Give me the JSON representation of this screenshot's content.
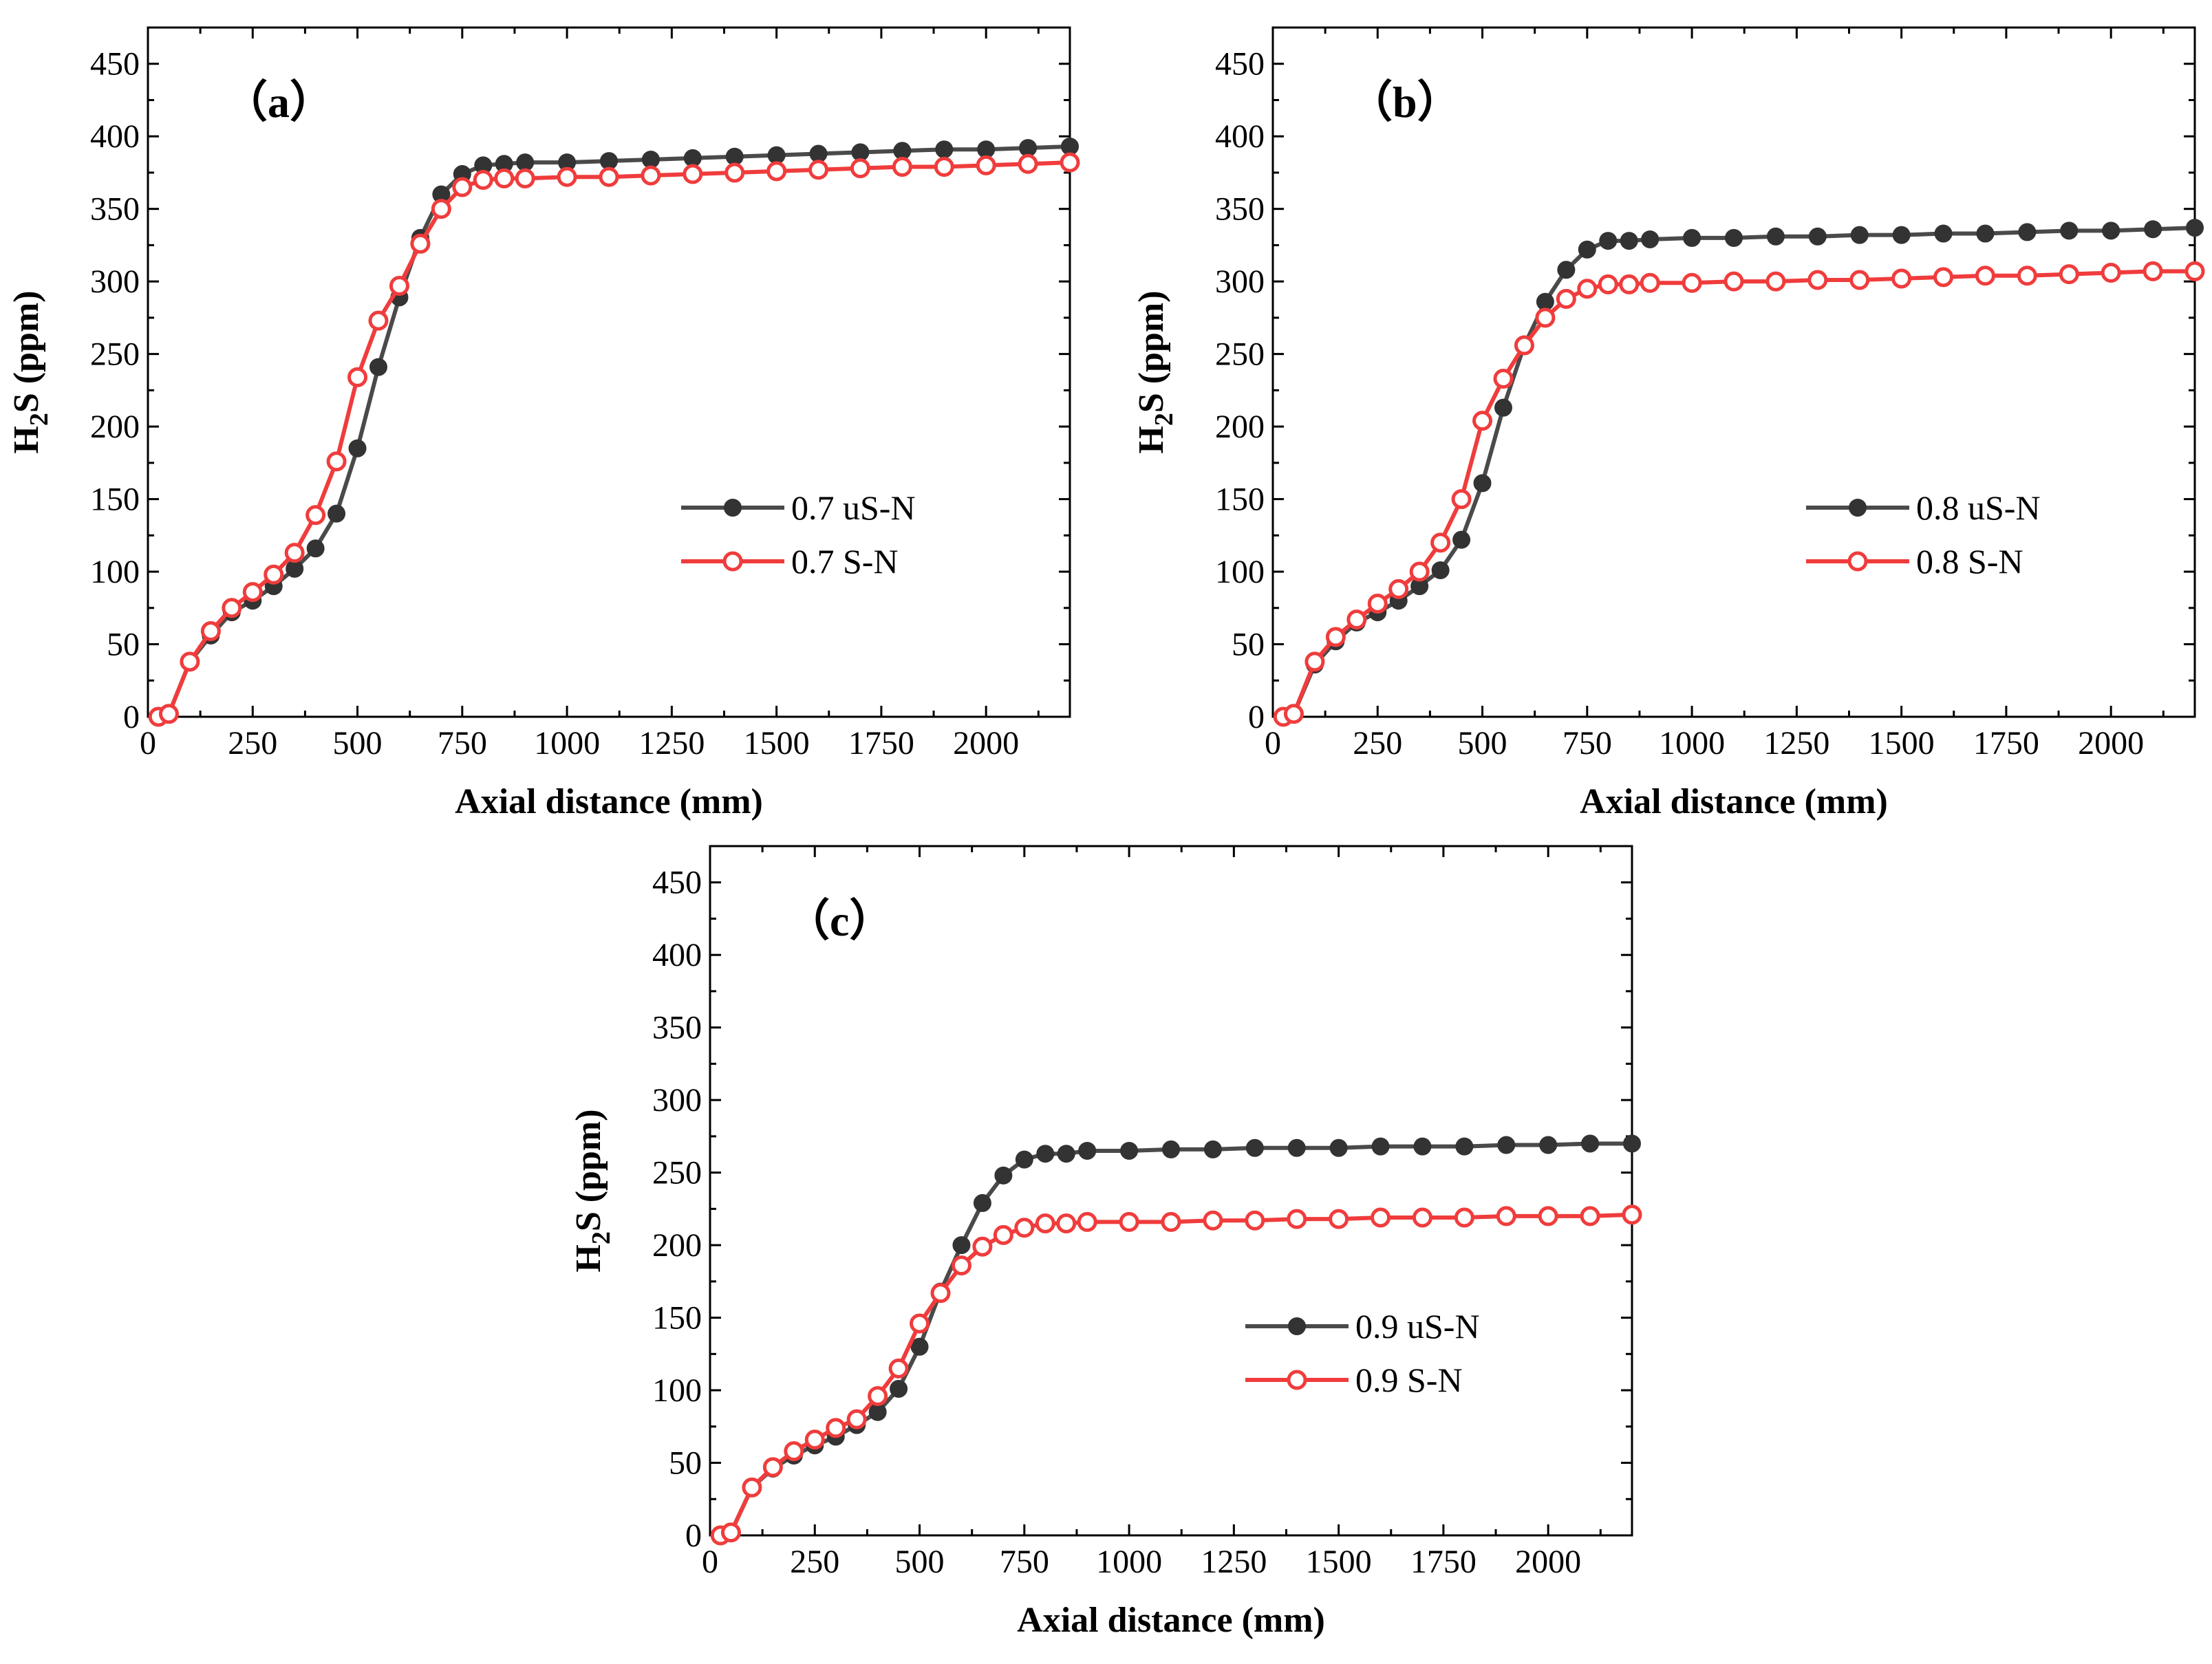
{
  "chart_data": [
    {
      "type": "line",
      "panel_label": "（a）",
      "xlabel": "Axial distance (mm)",
      "ylabel_main": "H",
      "ylabel_sub": "2",
      "ylabel_rest": "S (ppm)",
      "xlim": [
        0,
        2200
      ],
      "ylim": [
        0,
        475
      ],
      "xticks": [
        0,
        250,
        500,
        750,
        1000,
        1250,
        1500,
        1750,
        2000
      ],
      "yticks": [
        0,
        50,
        100,
        150,
        200,
        250,
        300,
        350,
        400,
        450
      ],
      "legend_position": "center-right",
      "series": [
        {
          "name": "0.7 uS-N",
          "color": "#4a4a4a",
          "marker": "filled",
          "x": [
            25,
            50,
            100,
            150,
            200,
            250,
            300,
            350,
            400,
            450,
            500,
            550,
            600,
            650,
            700,
            750,
            800,
            850,
            900,
            1000,
            1100,
            1200,
            1300,
            1400,
            1500,
            1600,
            1700,
            1800,
            1900,
            2000,
            2100,
            2200
          ],
          "y": [
            0,
            2,
            38,
            56,
            72,
            80,
            90,
            102,
            116,
            140,
            185,
            241,
            289,
            330,
            360,
            374,
            380,
            381,
            382,
            382,
            383,
            384,
            385,
            386,
            387,
            388,
            389,
            390,
            391,
            391,
            392,
            393
          ]
        },
        {
          "name": "0.7 S-N",
          "color": "#f03c3c",
          "marker": "open",
          "x": [
            25,
            50,
            100,
            150,
            200,
            250,
            300,
            350,
            400,
            450,
            500,
            550,
            600,
            650,
            700,
            750,
            800,
            850,
            900,
            1000,
            1100,
            1200,
            1300,
            1400,
            1500,
            1600,
            1700,
            1800,
            1900,
            2000,
            2100,
            2200
          ],
          "y": [
            0,
            2,
            38,
            59,
            75,
            86,
            98,
            113,
            139,
            176,
            234,
            273,
            297,
            326,
            350,
            365,
            370,
            371,
            371,
            372,
            372,
            373,
            374,
            375,
            376,
            377,
            378,
            379,
            379,
            380,
            381,
            382
          ]
        }
      ]
    },
    {
      "type": "line",
      "panel_label": "（b）",
      "xlabel": "Axial distance (mm)",
      "ylabel_main": "H",
      "ylabel_sub": "2",
      "ylabel_rest": "S (ppm)",
      "xlim": [
        0,
        2200
      ],
      "ylim": [
        0,
        475
      ],
      "xticks": [
        0,
        250,
        500,
        750,
        1000,
        1250,
        1500,
        1750,
        2000
      ],
      "yticks": [
        0,
        50,
        100,
        150,
        200,
        250,
        300,
        350,
        400,
        450
      ],
      "legend_position": "center-right",
      "series": [
        {
          "name": "0.8 uS-N",
          "color": "#4a4a4a",
          "marker": "filled",
          "x": [
            25,
            50,
            100,
            150,
            200,
            250,
            300,
            350,
            400,
            450,
            500,
            550,
            600,
            650,
            700,
            750,
            800,
            850,
            900,
            1000,
            1100,
            1200,
            1300,
            1400,
            1500,
            1600,
            1700,
            1800,
            1900,
            2000,
            2100,
            2200
          ],
          "y": [
            0,
            2,
            36,
            52,
            65,
            72,
            80,
            90,
            101,
            122,
            161,
            213,
            256,
            286,
            308,
            322,
            328,
            328,
            329,
            330,
            330,
            331,
            331,
            332,
            332,
            333,
            333,
            334,
            335,
            335,
            336,
            337
          ]
        },
        {
          "name": "0.8 S-N",
          "color": "#f03c3c",
          "marker": "open",
          "x": [
            25,
            50,
            100,
            150,
            200,
            250,
            300,
            350,
            400,
            450,
            500,
            550,
            600,
            650,
            700,
            750,
            800,
            850,
            900,
            1000,
            1100,
            1200,
            1300,
            1400,
            1500,
            1600,
            1700,
            1800,
            1900,
            2000,
            2100,
            2200
          ],
          "y": [
            0,
            2,
            38,
            55,
            67,
            78,
            88,
            100,
            120,
            150,
            204,
            233,
            256,
            275,
            288,
            295,
            298,
            298,
            299,
            299,
            300,
            300,
            301,
            301,
            302,
            303,
            304,
            304,
            305,
            306,
            307,
            307
          ]
        }
      ]
    },
    {
      "type": "line",
      "panel_label": "（c）",
      "xlabel": "Axial distance (mm)",
      "ylabel_main": "H",
      "ylabel_sub": "2",
      "ylabel_rest": "S (ppm)",
      "xlim": [
        0,
        2200
      ],
      "ylim": [
        0,
        475
      ],
      "xticks": [
        0,
        250,
        500,
        750,
        1000,
        1250,
        1500,
        1750,
        2000
      ],
      "yticks": [
        0,
        50,
        100,
        150,
        200,
        250,
        300,
        350,
        400,
        450
      ],
      "legend_position": "center-right",
      "series": [
        {
          "name": "0.9 uS-N",
          "color": "#4a4a4a",
          "marker": "filled",
          "x": [
            25,
            50,
            100,
            150,
            200,
            250,
            300,
            350,
            400,
            450,
            500,
            550,
            600,
            650,
            700,
            750,
            800,
            850,
            900,
            1000,
            1100,
            1200,
            1300,
            1400,
            1500,
            1600,
            1700,
            1800,
            1900,
            2000,
            2100,
            2200
          ],
          "y": [
            0,
            2,
            33,
            46,
            55,
            62,
            68,
            76,
            85,
            101,
            130,
            168,
            200,
            229,
            248,
            259,
            263,
            263,
            265,
            265,
            266,
            266,
            267,
            267,
            267,
            268,
            268,
            268,
            269,
            269,
            270,
            270
          ]
        },
        {
          "name": "0.9 S-N",
          "color": "#f03c3c",
          "marker": "open",
          "x": [
            25,
            50,
            100,
            150,
            200,
            250,
            300,
            350,
            400,
            450,
            500,
            550,
            600,
            650,
            700,
            750,
            800,
            850,
            900,
            1000,
            1100,
            1200,
            1300,
            1400,
            1500,
            1600,
            1700,
            1800,
            1900,
            2000,
            2100,
            2200
          ],
          "y": [
            0,
            2,
            33,
            47,
            58,
            66,
            74,
            80,
            96,
            115,
            146,
            167,
            186,
            199,
            207,
            212,
            215,
            215,
            216,
            216,
            216,
            217,
            217,
            218,
            218,
            219,
            219,
            219,
            220,
            220,
            220,
            221
          ]
        }
      ]
    }
  ]
}
